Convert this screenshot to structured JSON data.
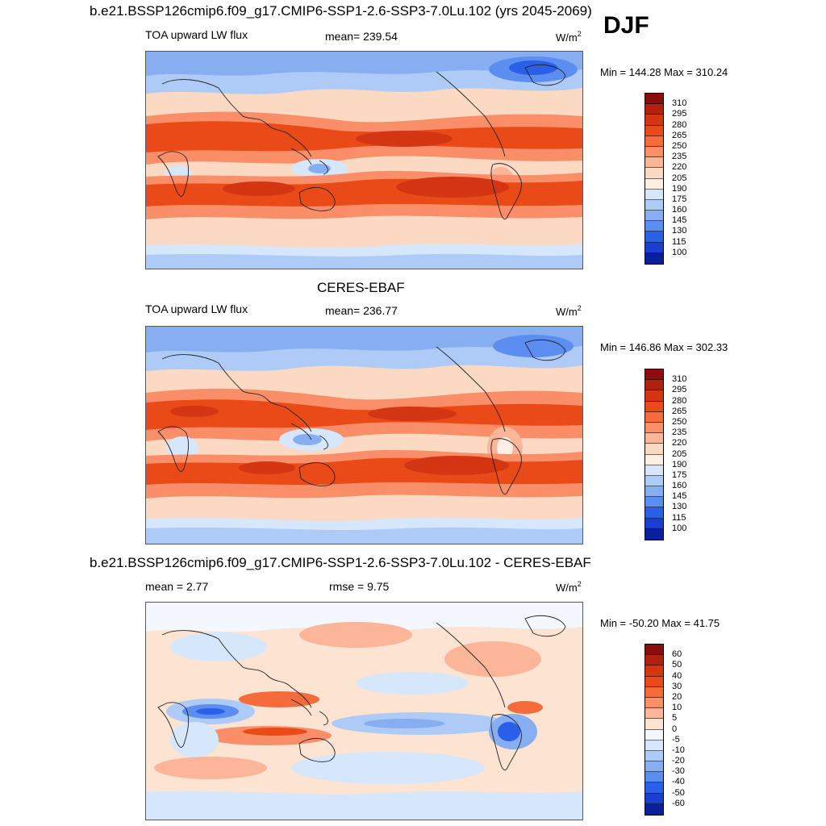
{
  "season": "DJF",
  "panels": [
    {
      "title": "b.e21.BSSP126cmip6.f09_g17.CMIP6-SSP1-2.6-SSP3-7.0Lu.102 (yrs 2045-2069)",
      "variable": "TOA upward LW flux",
      "stat1": "mean= 239.54",
      "unit": "W/m",
      "unit_exp": "2",
      "minmax": "Min = 144.28 Max = 310.24",
      "colorbar_labels": [
        "310",
        "295",
        "280",
        "265",
        "250",
        "235",
        "220",
        "205",
        "190",
        "175",
        "160",
        "145",
        "130",
        "115",
        "100"
      ],
      "colorbar_colors": [
        "#8b0d0d",
        "#b3200f",
        "#d43512",
        "#ea4a18",
        "#f56b3c",
        "#f98e68",
        "#fbb598",
        "#fcd9c2",
        "#ffeee2",
        "#d6e6fb",
        "#adcbf6",
        "#86aef1",
        "#5b8ef0",
        "#2a60e8",
        "#1a3fd0",
        "#0a1f9e"
      ]
    },
    {
      "title": "CERES-EBAF",
      "variable": "TOA upward LW flux",
      "stat1": "mean= 236.77",
      "unit": "W/m",
      "unit_exp": "2",
      "minmax": "Min = 146.86 Max = 302.33",
      "colorbar_labels": [
        "310",
        "295",
        "280",
        "265",
        "250",
        "235",
        "220",
        "205",
        "190",
        "175",
        "160",
        "145",
        "130",
        "115",
        "100"
      ],
      "colorbar_colors": [
        "#8b0d0d",
        "#b3200f",
        "#d43512",
        "#ea4a18",
        "#f56b3c",
        "#f98e68",
        "#fbb598",
        "#fcd9c2",
        "#ffeee2",
        "#d6e6fb",
        "#adcbf6",
        "#86aef1",
        "#5b8ef0",
        "#2a60e8",
        "#1a3fd0",
        "#0a1f9e"
      ]
    },
    {
      "title": "b.e21.BSSP126cmip6.f09_g17.CMIP6-SSP1-2.6-SSP3-7.0Lu.102 - CERES-EBAF",
      "stat1": "mean =   2.77",
      "stat2": "rmse =   9.75",
      "unit": "W/m",
      "unit_exp": "2",
      "minmax": "Min = -50.20 Max =  41.75",
      "colorbar_labels": [
        "60",
        "50",
        "40",
        "30",
        "20",
        "10",
        "5",
        "0",
        "-5",
        "-10",
        "-20",
        "-30",
        "-40",
        "-50",
        "-60"
      ],
      "colorbar_colors": [
        "#8b0d0d",
        "#b3200f",
        "#d43512",
        "#ea4a18",
        "#f56b3c",
        "#f98e68",
        "#fbb598",
        "#fde3d2",
        "#f4f8fe",
        "#d6e6fb",
        "#adcbf6",
        "#86aef1",
        "#5b8ef0",
        "#2a60e8",
        "#1a3fd0",
        "#0a1f9e"
      ]
    }
  ]
}
